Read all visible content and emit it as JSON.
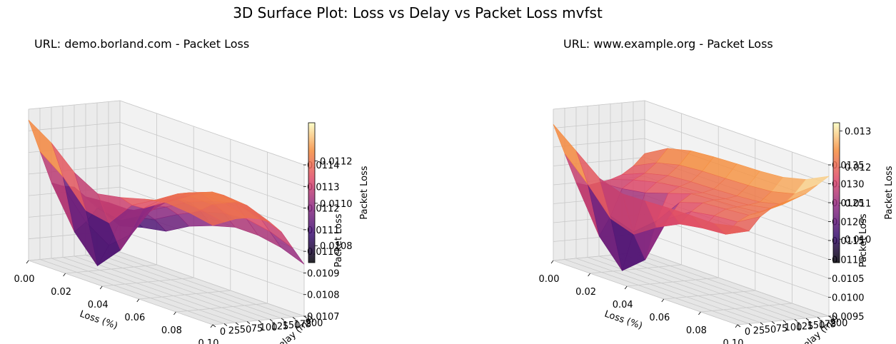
{
  "suptitle": "3D Surface Plot: Loss vs Delay vs Packet Loss mvfst",
  "colormap": [
    "#000004",
    "#3b0f70",
    "#8c2981",
    "#de4968",
    "#f58c3d",
    "#fcfdbf"
  ],
  "chart_data": [
    {
      "type": "surface3d",
      "title": "URL: demo.borland.com - Packet Loss",
      "xlabel": "Loss (%)",
      "ylabel": "Delay (ms)",
      "zlabel": "Packet Loss",
      "colorbar_label": "Packet Loss",
      "x_ticks": [
        "0.00",
        "0.02",
        "0.04",
        "0.06",
        "0.08",
        "0.10"
      ],
      "y_ticks": [
        "0",
        "25",
        "50",
        "75",
        "100",
        "125",
        "150",
        "175",
        "200"
      ],
      "z_ticks": [
        "0.0107",
        "0.0108",
        "0.0109",
        "0.0110",
        "0.0111",
        "0.0112",
        "0.0113",
        "0.0114"
      ],
      "colorbar_ticks": [
        "0.0108",
        "0.0110",
        "0.0112"
      ],
      "xlim": [
        0,
        0.1
      ],
      "ylim": [
        0,
        200
      ],
      "zlim": [
        0.0107,
        0.0114
      ],
      "colorbar_range": [
        0.01072,
        0.01138
      ],
      "grid": true,
      "x": [
        0,
        0.0125,
        0.025,
        0.0375,
        0.05,
        0.0625,
        0.075,
        0.0875,
        0.1
      ],
      "y": [
        0,
        25,
        50,
        75,
        100,
        125,
        150,
        175,
        200
      ],
      "z": [
        [
          0.01135,
          0.01128,
          0.01118,
          0.01112,
          0.01114,
          0.01117,
          0.01119,
          0.01118,
          0.01116
        ],
        [
          0.0112,
          0.01112,
          0.011,
          0.01098,
          0.0111,
          0.01116,
          0.0112,
          0.01119,
          0.01117
        ],
        [
          0.01105,
          0.01086,
          0.01074,
          0.01085,
          0.01108,
          0.01117,
          0.01121,
          0.01121,
          0.01118
        ],
        [
          0.01103,
          0.0109,
          0.01083,
          0.01092,
          0.01109,
          0.01118,
          0.01122,
          0.01121,
          0.01118
        ],
        [
          0.01102,
          0.01096,
          0.01094,
          0.011,
          0.0111,
          0.01118,
          0.01122,
          0.01121,
          0.01117
        ],
        [
          0.01097,
          0.01098,
          0.01098,
          0.01104,
          0.01111,
          0.01117,
          0.0112,
          0.01119,
          0.01115
        ],
        [
          0.01092,
          0.01095,
          0.01097,
          0.01103,
          0.01109,
          0.01113,
          0.01116,
          0.01114,
          0.0111
        ],
        [
          0.01087,
          0.0109,
          0.01093,
          0.01099,
          0.01104,
          0.01107,
          0.01108,
          0.01106,
          0.01102
        ],
        [
          0.01082,
          0.01085,
          0.01087,
          0.01093,
          0.01097,
          0.011,
          0.011,
          0.01098,
          0.01094
        ]
      ]
    },
    {
      "type": "surface3d",
      "title": "URL: www.example.org - Packet Loss",
      "xlabel": "Loss (%)",
      "ylabel": "Delay (ms)",
      "zlabel": "Packet Loss",
      "colorbar_label": "Packet Loss",
      "x_ticks": [
        "0.00",
        "0.02",
        "0.04",
        "0.06",
        "0.08",
        "0.10"
      ],
      "y_ticks": [
        "0",
        "25",
        "50",
        "75",
        "100",
        "125",
        "150",
        "175",
        "200"
      ],
      "z_ticks": [
        "0.0095",
        "0.0100",
        "0.0105",
        "0.0110",
        "0.0115",
        "0.0120",
        "0.0125",
        "0.0130",
        "0.0135"
      ],
      "colorbar_ticks": [
        "0.010",
        "0.011",
        "0.012",
        "0.013"
      ],
      "xlim": [
        0,
        0.1
      ],
      "ylim": [
        0,
        200
      ],
      "zlim": [
        0.0095,
        0.0135
      ],
      "colorbar_range": [
        0.00935,
        0.01323
      ],
      "grid": true,
      "x": [
        0,
        0.0125,
        0.025,
        0.0375,
        0.05,
        0.0625,
        0.075,
        0.0875,
        0.1
      ],
      "y": [
        0,
        25,
        50,
        75,
        100,
        125,
        150,
        175,
        200
      ],
      "z": [
        [
          0.0131,
          0.0126,
          0.0121,
          0.0119,
          0.01192,
          0.01195,
          0.01196,
          0.01196,
          0.0121
        ],
        [
          0.0123,
          0.0117,
          0.011,
          0.0108,
          0.0112,
          0.0115,
          0.0116,
          0.01165,
          0.01195
        ],
        [
          0.0115,
          0.0103,
          0.0096,
          0.0101,
          0.0114,
          0.0118,
          0.0119,
          0.01195,
          0.0123
        ],
        [
          0.0114,
          0.0108,
          0.0106,
          0.0111,
          0.0118,
          0.012,
          0.01205,
          0.0121,
          0.0125
        ],
        [
          0.01145,
          0.0115,
          0.0116,
          0.0118,
          0.012,
          0.01205,
          0.01208,
          0.01215,
          0.01262
        ],
        [
          0.0115,
          0.0117,
          0.01185,
          0.01195,
          0.012,
          0.01205,
          0.0121,
          0.01222,
          0.0127
        ],
        [
          0.0116,
          0.01185,
          0.012,
          0.01205,
          0.01207,
          0.0121,
          0.01215,
          0.0123,
          0.0128
        ],
        [
          0.0118,
          0.0121,
          0.01225,
          0.0123,
          0.01232,
          0.01235,
          0.0124,
          0.01255,
          0.013
        ],
        [
          0.0121,
          0.01245,
          0.0126,
          0.01265,
          0.01268,
          0.0127,
          0.01275,
          0.0129,
          0.0132
        ]
      ]
    }
  ]
}
